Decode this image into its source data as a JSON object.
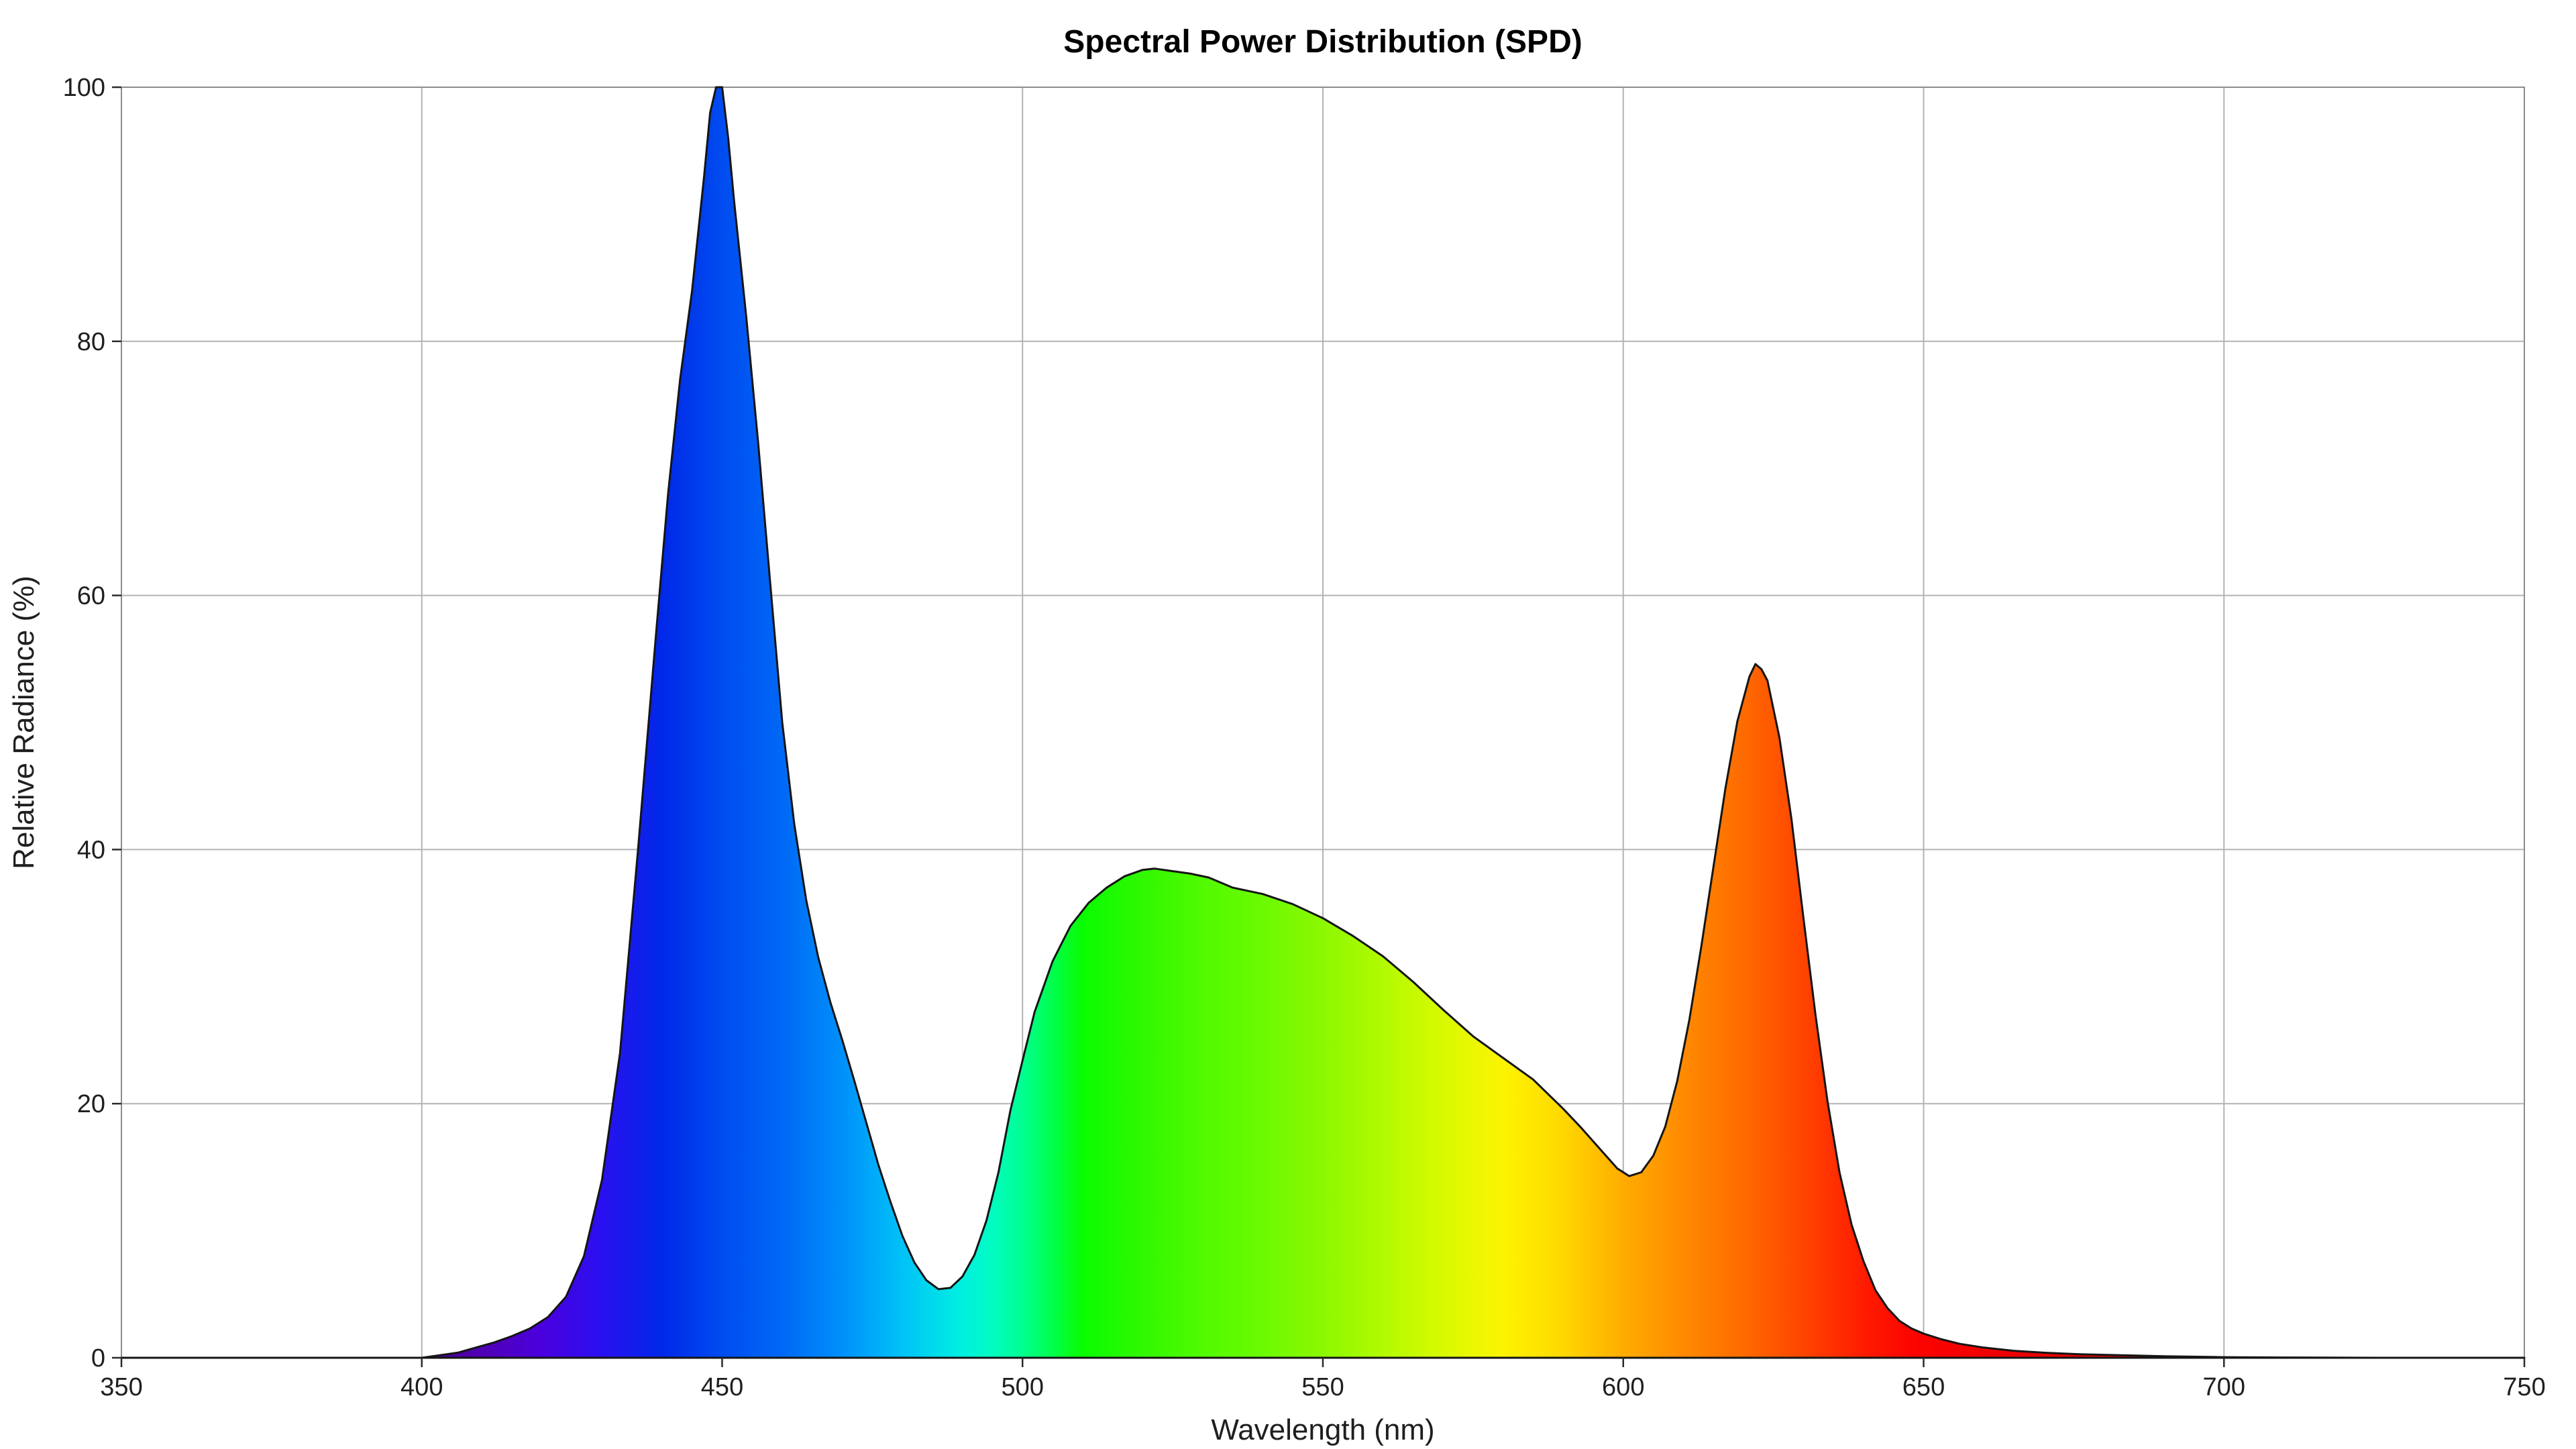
{
  "title": "Spectral Power Distribution (SPD)",
  "colors": {
    "background": "#ffffff",
    "gridline": "#b3b3b3",
    "spine": "#8c8c8c",
    "tick_mark": "#2b2b2b",
    "curve_line": "#151515",
    "text": "#1f1f1f",
    "title_text": "#000000"
  },
  "chart_data": {
    "type": "area",
    "title": "Spectral Power Distribution (SPD)",
    "xlabel": "Wavelength (nm)",
    "ylabel": "Relative Radiance (%)",
    "xlim": [
      350,
      750
    ],
    "ylim": [
      0,
      100
    ],
    "x_ticks": [
      350,
      400,
      450,
      500,
      550,
      600,
      650,
      700,
      750
    ],
    "y_ticks": [
      0,
      20,
      40,
      60,
      80,
      100
    ],
    "grid": true,
    "legend": "none",
    "series_name": "SPD",
    "x": [
      350,
      400,
      403,
      406,
      409,
      412,
      415,
      418,
      421,
      424,
      427,
      430,
      433,
      436,
      439,
      441,
      443,
      445,
      447,
      448,
      449,
      450,
      451,
      452,
      454,
      456,
      458,
      460,
      462,
      464,
      466,
      468,
      470,
      472,
      474,
      476,
      478,
      480,
      482,
      484,
      486,
      488,
      490,
      492,
      494,
      496,
      498,
      500,
      502,
      505,
      508,
      511,
      514,
      517,
      520,
      522,
      525,
      528,
      531,
      535,
      540,
      545,
      550,
      555,
      560,
      565,
      570,
      575,
      580,
      585,
      590,
      593,
      596,
      599,
      601,
      603,
      605,
      607,
      609,
      611,
      613,
      615,
      617,
      619,
      621,
      622,
      623,
      624,
      626,
      628,
      630,
      632,
      634,
      636,
      638,
      640,
      642,
      644,
      646,
      648,
      650,
      653,
      656,
      660,
      665,
      670,
      676,
      683,
      690,
      700,
      710,
      725,
      750
    ],
    "y": [
      0,
      0,
      0.2,
      0.4,
      0.8,
      1.2,
      1.7,
      2.3,
      3.2,
      4.8,
      8,
      14,
      24,
      40,
      57,
      68,
      77,
      84,
      93,
      98,
      100,
      100,
      96,
      91,
      82,
      72,
      61,
      50,
      42,
      36,
      31.5,
      28,
      25,
      21.8,
      18.5,
      15.2,
      12.3,
      9.6,
      7.5,
      6.1,
      5.4,
      5.5,
      6.4,
      8.1,
      10.8,
      14.6,
      19.5,
      23.4,
      27.2,
      31.2,
      34,
      35.8,
      37,
      37.9,
      38.4,
      38.5,
      38.3,
      38.1,
      37.8,
      37,
      36.5,
      35.7,
      34.6,
      33.2,
      31.6,
      29.6,
      27.4,
      25.3,
      23.6,
      21.9,
      19.6,
      18.1,
      16.5,
      14.9,
      14.3,
      14.6,
      15.9,
      18.2,
      21.8,
      26.6,
      32.4,
      38.6,
      44.8,
      50.1,
      53.6,
      54.6,
      54.2,
      53.3,
      48.8,
      42.4,
      34.6,
      27,
      20.2,
      14.6,
      10.5,
      7.6,
      5.3,
      3.9,
      2.9,
      2.3,
      1.9,
      1.45,
      1.1,
      0.8,
      0.55,
      0.4,
      0.28,
      0.2,
      0.12,
      0.05,
      0.02,
      0,
      0
    ],
    "features": {
      "blue_peak": {
        "wavelength": 449,
        "value": 100
      },
      "cyan_trough": {
        "wavelength": 486,
        "value": 5.4
      },
      "green_peak": {
        "wavelength": 522,
        "value": 38.5
      },
      "amber_trough": {
        "wavelength": 601,
        "value": 14.3
      },
      "red_peak": {
        "wavelength": 622,
        "value": 54.6
      }
    },
    "fill": "spectral-wavelength-gradient",
    "spectrum_stops": [
      [
        350,
        "#3A006A"
      ],
      [
        400,
        "#48008A"
      ],
      [
        410,
        "#5000B4"
      ],
      [
        420,
        "#4A00DE"
      ],
      [
        430,
        "#2A10F0"
      ],
      [
        440,
        "#0028E8"
      ],
      [
        450,
        "#004CF0"
      ],
      [
        460,
        "#0068F6"
      ],
      [
        470,
        "#0090FA"
      ],
      [
        480,
        "#00C2F8"
      ],
      [
        490,
        "#00F0E0"
      ],
      [
        495,
        "#00FCC0"
      ],
      [
        500,
        "#00FF90"
      ],
      [
        505,
        "#00FF4C"
      ],
      [
        510,
        "#0AFC00"
      ],
      [
        520,
        "#30F800"
      ],
      [
        530,
        "#52FA00"
      ],
      [
        540,
        "#6BFA00"
      ],
      [
        550,
        "#8CF800"
      ],
      [
        560,
        "#B2FA00"
      ],
      [
        570,
        "#D8FA00"
      ],
      [
        580,
        "#FCF400"
      ],
      [
        590,
        "#FFD800"
      ],
      [
        600,
        "#FFAC00"
      ],
      [
        610,
        "#FF8A00"
      ],
      [
        620,
        "#FF6A00"
      ],
      [
        630,
        "#FF4400"
      ],
      [
        640,
        "#FF1C00"
      ],
      [
        648,
        "#FC0400"
      ],
      [
        660,
        "#F20000"
      ],
      [
        680,
        "#E40000"
      ],
      [
        700,
        "#D40000"
      ],
      [
        750,
        "#780000"
      ]
    ]
  }
}
